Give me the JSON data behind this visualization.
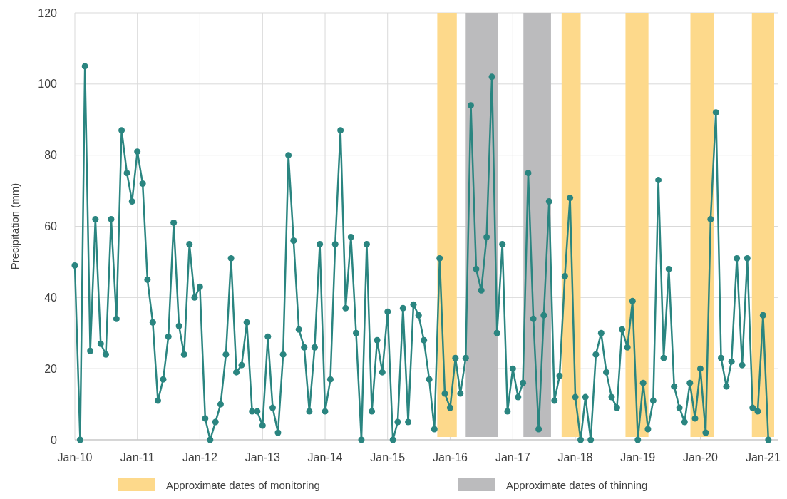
{
  "chart_data": {
    "type": "line",
    "ylabel": "Precipitation (mm)",
    "x": [
      "2010-01",
      "2010-02",
      "2010-03",
      "2010-04",
      "2010-05",
      "2010-06",
      "2010-07",
      "2010-08",
      "2010-09",
      "2010-10",
      "2010-11",
      "2010-12",
      "2011-01",
      "2011-02",
      "2011-03",
      "2011-04",
      "2011-05",
      "2011-06",
      "2011-07",
      "2011-08",
      "2011-09",
      "2011-10",
      "2011-11",
      "2011-12",
      "2012-01",
      "2012-02",
      "2012-03",
      "2012-04",
      "2012-05",
      "2012-06",
      "2012-07",
      "2012-08",
      "2012-09",
      "2012-10",
      "2012-11",
      "2012-12",
      "2013-01",
      "2013-02",
      "2013-03",
      "2013-04",
      "2013-05",
      "2013-06",
      "2013-07",
      "2013-08",
      "2013-09",
      "2013-10",
      "2013-11",
      "2013-12",
      "2014-01",
      "2014-02",
      "2014-03",
      "2014-04",
      "2014-05",
      "2014-06",
      "2014-07",
      "2014-08",
      "2014-09",
      "2014-10",
      "2014-11",
      "2014-12",
      "2015-01",
      "2015-02",
      "2015-03",
      "2015-04",
      "2015-05",
      "2015-06",
      "2015-07",
      "2015-08",
      "2015-09",
      "2015-10",
      "2015-11",
      "2015-12",
      "2016-01",
      "2016-02",
      "2016-03",
      "2016-04",
      "2016-05",
      "2016-06",
      "2016-07",
      "2016-08",
      "2016-09",
      "2016-10",
      "2016-11",
      "2016-12",
      "2017-01",
      "2017-02",
      "2017-03",
      "2017-04",
      "2017-05",
      "2017-06",
      "2017-07",
      "2017-08",
      "2017-09",
      "2017-10",
      "2017-11",
      "2017-12",
      "2018-01",
      "2018-02",
      "2018-03",
      "2018-04",
      "2018-05",
      "2018-06",
      "2018-07",
      "2018-08",
      "2018-09",
      "2018-10",
      "2018-11",
      "2018-12",
      "2019-01",
      "2019-02",
      "2019-03",
      "2019-04",
      "2019-05",
      "2019-06",
      "2019-07",
      "2019-08",
      "2019-09",
      "2019-10",
      "2019-11",
      "2019-12",
      "2020-01",
      "2020-02",
      "2020-03",
      "2020-04",
      "2020-05",
      "2020-06",
      "2020-07",
      "2020-08",
      "2020-09",
      "2020-10",
      "2020-11",
      "2020-12",
      "2021-01",
      "2021-02"
    ],
    "series": [
      {
        "color": "#2a8580",
        "values": [
          49,
          0,
          105,
          25,
          62,
          27,
          24,
          62,
          34,
          87,
          75,
          67,
          81,
          72,
          45,
          33,
          11,
          17,
          29,
          61,
          32,
          24,
          55,
          40,
          43,
          6,
          0,
          5,
          10,
          24,
          51,
          19,
          21,
          33,
          8,
          8,
          4,
          29,
          9,
          2,
          24,
          80,
          56,
          31,
          26,
          8,
          26,
          55,
          8,
          17,
          55,
          87,
          37,
          57,
          30,
          0,
          55,
          8,
          28,
          19,
          36,
          0,
          5,
          37,
          5,
          38,
          35,
          28,
          17,
          3,
          51,
          13,
          9,
          23,
          13,
          23,
          94,
          48,
          42,
          57,
          102,
          30,
          55,
          8,
          20,
          12,
          16,
          75,
          34,
          3,
          35,
          67,
          11,
          18,
          46,
          68,
          12,
          0,
          12,
          0,
          24,
          30,
          19,
          12,
          9,
          31,
          26,
          39,
          0,
          16,
          3,
          11,
          73,
          23,
          48,
          15,
          9,
          5,
          16,
          6,
          20,
          2,
          62,
          92,
          23,
          15,
          22,
          51,
          21,
          51,
          9,
          8,
          35,
          0
        ]
      }
    ],
    "xlim": [
      "2010-01",
      "2021-04"
    ],
    "xticks": [
      {
        "value": "2010-01",
        "label": "Jan-10"
      },
      {
        "value": "2011-01",
        "label": "Jan-11"
      },
      {
        "value": "2012-01",
        "label": "Jan-12"
      },
      {
        "value": "2013-01",
        "label": "Jan-13"
      },
      {
        "value": "2014-01",
        "label": "Jan-14"
      },
      {
        "value": "2015-01",
        "label": "Jan-15"
      },
      {
        "value": "2016-01",
        "label": "Jan-16"
      },
      {
        "value": "2017-01",
        "label": "Jan-17"
      },
      {
        "value": "2018-01",
        "label": "Jan-18"
      },
      {
        "value": "2019-01",
        "label": "Jan-19"
      },
      {
        "value": "2020-01",
        "label": "Jan-20"
      },
      {
        "value": "2021-01",
        "label": "Jan-21"
      }
    ],
    "ylim": [
      0,
      120
    ],
    "yticks": [
      0,
      20,
      40,
      60,
      80,
      100,
      120
    ],
    "bands": [
      {
        "axis": "x",
        "from": "2015-10-18",
        "to": "2016-02-09",
        "label": "Approximate dates of monitoring",
        "color": "#fdd98b"
      },
      {
        "axis": "x",
        "from": "2016-04-01",
        "to": "2016-10-06",
        "label": "Approximate dates of thinning",
        "color": "#bbbbbd"
      },
      {
        "axis": "x",
        "from": "2017-03-04",
        "to": "2017-08-12",
        "color": "#bbbbbd"
      },
      {
        "axis": "x",
        "from": "2017-10-13",
        "to": "2018-02-01",
        "color": "#fdd98b"
      },
      {
        "axis": "x",
        "from": "2018-10-21",
        "to": "2019-03-04",
        "color": "#fdd98b"
      },
      {
        "axis": "x",
        "from": "2019-11-04",
        "to": "2020-03-22",
        "color": "#fdd98b"
      },
      {
        "axis": "x",
        "from": "2020-10-28",
        "to": "2021-03-07",
        "color": "#fdd98b"
      }
    ],
    "grid": true,
    "legend": "bottom",
    "marker": "circle",
    "line_style": "solid"
  }
}
